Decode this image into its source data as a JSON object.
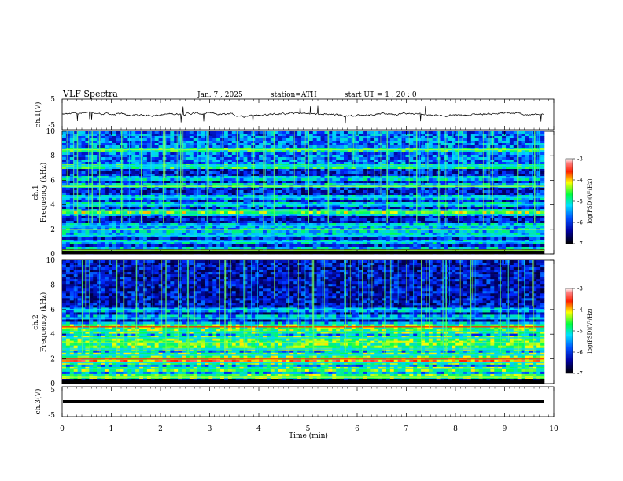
{
  "header": {
    "title": "VLF  Spectra",
    "date": "Jan.  7  , 2025",
    "station": "station=ATH",
    "start": "start  UT  =   1 : 20 : 0"
  },
  "chart_data": [
    {
      "type": "line",
      "name": "ch1-waveform",
      "ylabel": "ch.1(V)",
      "ylim": [
        -5,
        5
      ],
      "yticks": [
        "5",
        "-5"
      ],
      "x_range": [
        0,
        9.8
      ],
      "description_values": {
        "baseline": 0,
        "amplitude_range": [
          -1,
          1
        ]
      }
    },
    {
      "type": "heatmap",
      "name": "ch1-spectrogram",
      "ylabel": "ch.1\nFrequency  (kHz)",
      "ylabel_lines": [
        "ch.1",
        "Frequency  (kHz)"
      ],
      "ylim": [
        0,
        10
      ],
      "yticks": [
        "0",
        "2",
        "4",
        "6",
        "8",
        "10"
      ],
      "bands_khz": [
        0.3,
        1.0,
        1.5,
        2.0,
        2.3,
        3.2,
        3.5,
        4.0,
        4.6,
        5.5,
        6.2,
        7.2,
        8.5
      ],
      "spike_times_min": [
        0.3,
        0.6,
        0.75,
        1.2,
        1.6,
        2.05,
        2.4,
        2.95,
        3.55,
        4.3,
        5.0,
        5.4,
        6.6,
        7.2,
        7.65,
        8.05,
        9.25,
        9.6
      ],
      "colorbar": {
        "label": "log(PSD)(V²/Hz)",
        "ticks": [
          "-3",
          "-4",
          "-5",
          "-6",
          "-7"
        ],
        "range": [
          -7,
          -3
        ]
      }
    },
    {
      "type": "heatmap",
      "name": "ch2-spectrogram",
      "ylabel_lines": [
        "ch.2",
        "Frequency  (kHz)"
      ],
      "ylim": [
        0,
        10
      ],
      "yticks": [
        "0",
        "2",
        "4",
        "6",
        "8",
        "10"
      ],
      "bands_khz": [
        0.5,
        1.2,
        1.7,
        2.0,
        2.3,
        2.8,
        3.3,
        3.7,
        4.2,
        4.6,
        5.3,
        6.0
      ],
      "spike_times_min": [
        0.4,
        0.55,
        1.1,
        1.5,
        2.1,
        2.55,
        3.3,
        3.7,
        4.6,
        5.1,
        5.75,
        6.1,
        6.55,
        7.3,
        7.8,
        8.3,
        8.9,
        9.4
      ],
      "colorbar": {
        "label": "log(PSD)(V²/Hz)",
        "ticks": [
          "-3",
          "-4",
          "-5",
          "-6",
          "-7"
        ],
        "range": [
          -7,
          -3
        ]
      }
    },
    {
      "type": "line",
      "name": "ch3-waveform",
      "ylabel": "ch.3(V)",
      "ylim": [
        -5,
        5
      ],
      "yticks": [
        "5",
        "-5"
      ],
      "x_range": [
        0,
        9.8
      ],
      "description_values": {
        "baseline": -1.5
      }
    }
  ],
  "xaxis": {
    "label": "Time  (min)",
    "xlim": [
      0,
      10
    ],
    "ticks": [
      "0",
      "1",
      "2",
      "3",
      "4",
      "5",
      "6",
      "7",
      "8",
      "9",
      "10"
    ]
  },
  "colors": {
    "black": "#000000",
    "navy": "#00007a",
    "blue": "#0000ff",
    "cyan": "#00c8ff",
    "green": "#00ff40",
    "yellow": "#ffff00",
    "red": "#ff0000"
  }
}
